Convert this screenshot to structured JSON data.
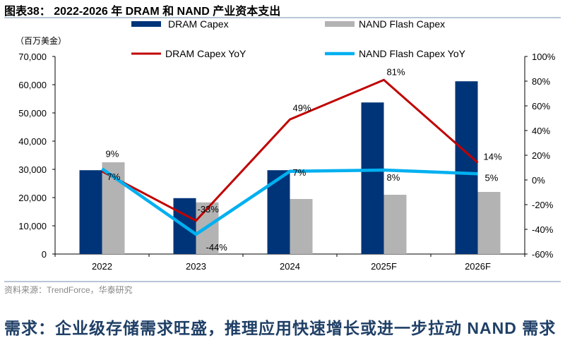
{
  "title": "图表38： 2022-2026 年 DRAM 和 NAND 产业资本支出",
  "source": "资料来源：TrendForce，华泰研究",
  "footer": "需求：企业级存储需求旺盛，推理应用快速增长或进一步拉动 NAND 需求",
  "colors": {
    "dram_bar": "#003478",
    "nand_bar": "#b3b3b3",
    "dram_line": "#c00000",
    "nand_line": "#00b0f0"
  },
  "chart_data": {
    "type": "bar+line",
    "categories": [
      "2022",
      "2023",
      "2024",
      "2025F",
      "2026F"
    ],
    "ylabel": "（百万美金）",
    "ylim": [
      0,
      70000
    ],
    "yticks": [
      "0",
      "10,000",
      "20,000",
      "30,000",
      "40,000",
      "50,000",
      "60,000",
      "70,000"
    ],
    "y2lim": [
      -60,
      100
    ],
    "y2ticks": [
      "-60%",
      "-40%",
      "-20%",
      "0%",
      "20%",
      "40%",
      "60%",
      "80%",
      "100%"
    ],
    "grid": false,
    "legend_position": "top",
    "series": [
      {
        "name": "DRAM Capex",
        "type": "bar",
        "axis": "left",
        "values": [
          29700,
          19800,
          29700,
          53700,
          61200
        ]
      },
      {
        "name": "NAND Flash Capex",
        "type": "bar",
        "axis": "left",
        "values": [
          32500,
          18300,
          19500,
          21000,
          22000
        ]
      },
      {
        "name": "DRAM Capex YoY",
        "type": "line",
        "axis": "right",
        "values": [
          7,
          -33,
          49,
          81,
          14
        ],
        "labels": [
          "7%",
          "-33%",
          "49%",
          "81%",
          "14%"
        ]
      },
      {
        "name": "NAND Flash Capex YoY",
        "type": "line",
        "axis": "right",
        "values": [
          9,
          -44,
          7,
          8,
          5
        ],
        "labels": [
          "9%",
          "-44%",
          "7%",
          "8%",
          "5%"
        ]
      }
    ]
  }
}
